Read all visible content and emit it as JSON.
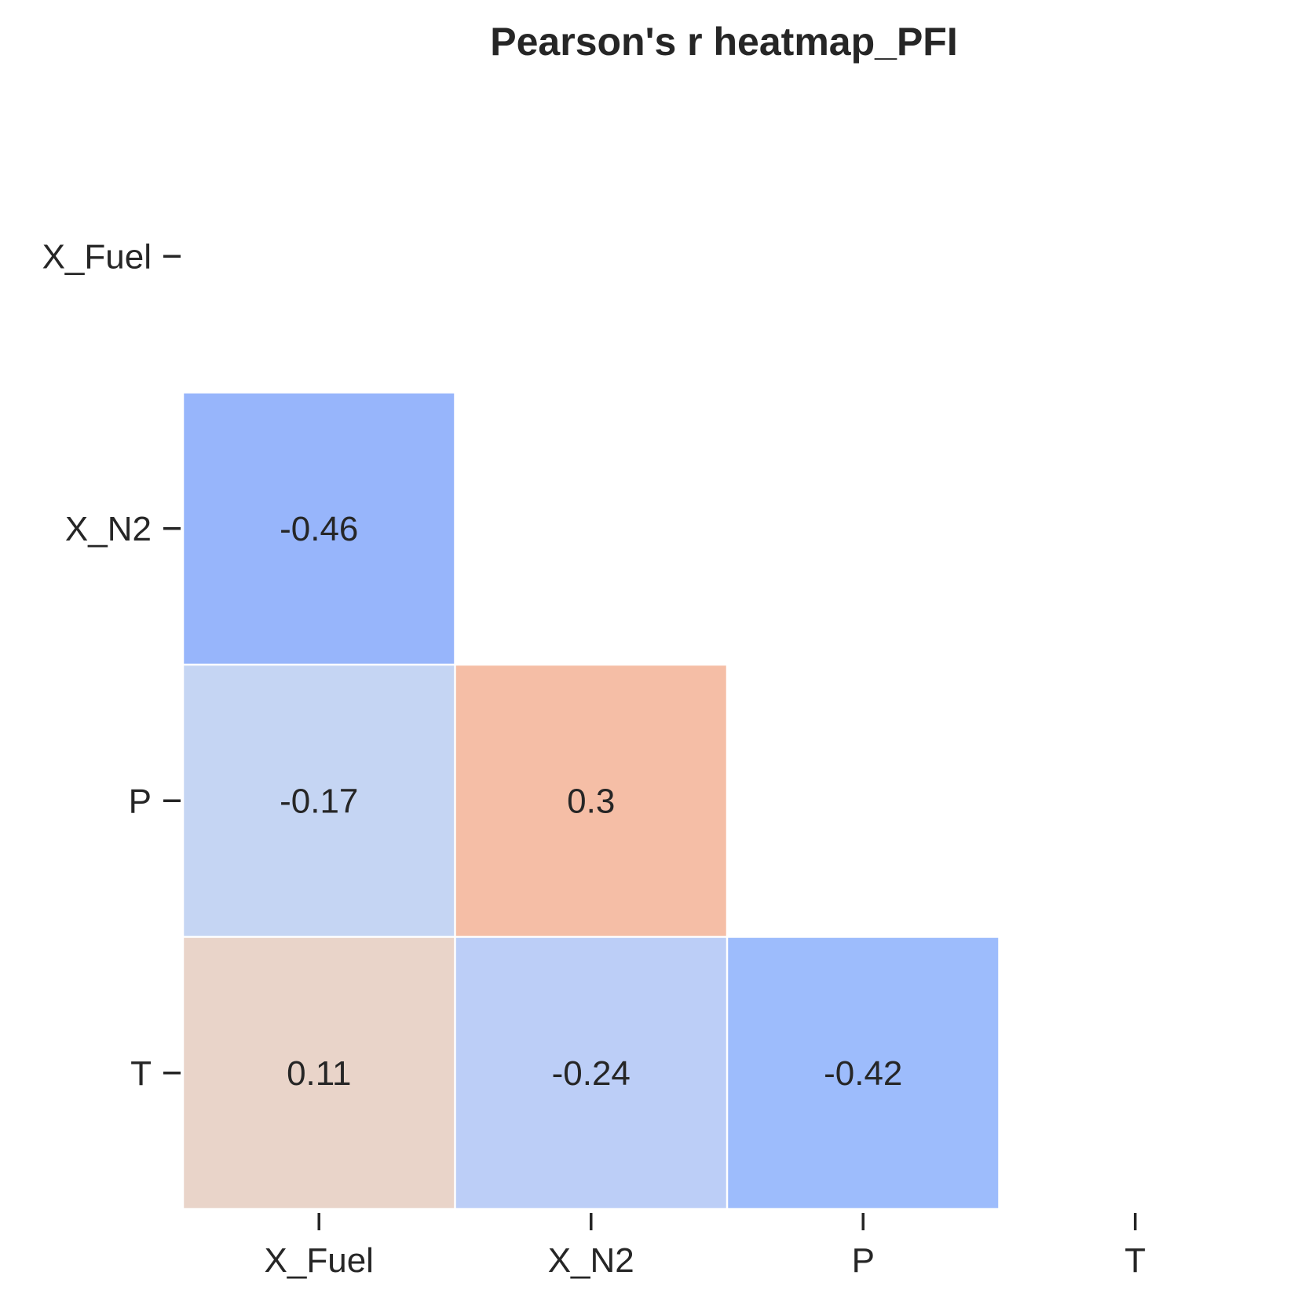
{
  "chart_data": {
    "type": "heatmap",
    "title": "Pearson's r heatmap_PFI",
    "xlabel": "",
    "ylabel": "",
    "x_categories": [
      "X_Fuel",
      "X_N2",
      "P",
      "T"
    ],
    "y_categories": [
      "X_Fuel",
      "X_N2",
      "P",
      "T"
    ],
    "mask": "upper-triangle-including-diagonal",
    "values": [
      [
        null,
        null,
        null,
        null
      ],
      [
        -0.46,
        null,
        null,
        null
      ],
      [
        -0.17,
        0.3,
        null,
        null
      ],
      [
        0.11,
        -0.24,
        -0.42,
        null
      ]
    ],
    "value_labels": [
      [
        null,
        null,
        null,
        null
      ],
      [
        "-0.46",
        null,
        null,
        null
      ],
      [
        "-0.17",
        "0.3",
        null,
        null
      ],
      [
        "0.11",
        "-0.24",
        "-0.42",
        null
      ]
    ],
    "cell_colors": [
      [
        null,
        null,
        null,
        null
      ],
      [
        "#97b5fb",
        null,
        null,
        null
      ],
      [
        "#c5d5f3",
        "#f5bea6",
        null,
        null
      ],
      [
        "#e9d4c9",
        "#bccef7",
        "#9dbcfc",
        null
      ]
    ],
    "colormap": "coolwarm",
    "grid": false,
    "colorbar": false
  }
}
